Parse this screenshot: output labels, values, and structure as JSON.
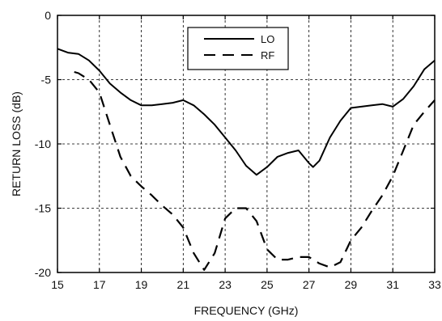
{
  "chart_data": {
    "type": "line",
    "xlabel": "FREQUENCY (GHz)",
    "ylabel": "RETURN LOSS (dB)",
    "xlim": [
      15,
      33
    ],
    "ylim": [
      -20,
      0
    ],
    "x_ticks": [
      15,
      17,
      19,
      21,
      23,
      25,
      27,
      29,
      31,
      33
    ],
    "y_ticks": [
      0,
      -5,
      -10,
      -15,
      -20
    ],
    "x_tick_labels": [
      "15",
      "17",
      "19",
      "21",
      "23",
      "25",
      "27",
      "29",
      "31",
      "33"
    ],
    "y_tick_labels": [
      "0",
      "-5",
      "-10",
      "-15",
      "-20"
    ],
    "grid": true,
    "legend_position": "top-center",
    "series": [
      {
        "name": "LO",
        "style": "solid",
        "color": "#000000",
        "x": [
          15,
          15.5,
          16,
          16.5,
          17,
          17.5,
          18,
          18.5,
          19,
          19.5,
          20,
          20.5,
          21,
          21.5,
          22,
          22.5,
          23,
          23.5,
          24,
          24.5,
          25,
          25.5,
          26,
          26.5,
          27,
          27.2,
          27.5,
          28,
          28.5,
          29,
          29.5,
          30,
          30.5,
          31,
          31.5,
          32,
          32.5,
          33
        ],
        "y": [
          -2.6,
          -2.9,
          -3.0,
          -3.5,
          -4.3,
          -5.3,
          -6.0,
          -6.6,
          -7.0,
          -7.0,
          -6.9,
          -6.8,
          -6.6,
          -7.0,
          -7.7,
          -8.5,
          -9.5,
          -10.5,
          -11.7,
          -12.4,
          -11.8,
          -11.0,
          -10.7,
          -10.5,
          -11.5,
          -11.8,
          -11.3,
          -9.5,
          -8.2,
          -7.2,
          -7.1,
          -7.0,
          -6.9,
          -7.1,
          -6.5,
          -5.5,
          -4.2,
          -3.5
        ]
      },
      {
        "name": "RF",
        "style": "dashed",
        "color": "#000000",
        "x": [
          15.8,
          16,
          16.5,
          17,
          17.5,
          18,
          18.5,
          19,
          19.5,
          20,
          20.5,
          21,
          21.5,
          22,
          22.5,
          23,
          23.5,
          24,
          24.5,
          25,
          25.5,
          26,
          26.5,
          27,
          27.5,
          28,
          28.5,
          29,
          29.5,
          30,
          30.5,
          31,
          31.5,
          32,
          32.5,
          33
        ],
        "y": [
          -4.4,
          -4.5,
          -5.0,
          -6.0,
          -8.5,
          -11.0,
          -12.5,
          -13.3,
          -14.0,
          -14.8,
          -15.5,
          -16.5,
          -18.5,
          -19.8,
          -18.5,
          -15.8,
          -15.0,
          -15.0,
          -16.0,
          -18.2,
          -19.0,
          -19.0,
          -18.8,
          -18.8,
          -19.3,
          -19.6,
          -19.2,
          -17.5,
          -16.5,
          -15.2,
          -14.0,
          -12.5,
          -10.5,
          -8.5,
          -7.5,
          -6.6
        ]
      }
    ]
  }
}
